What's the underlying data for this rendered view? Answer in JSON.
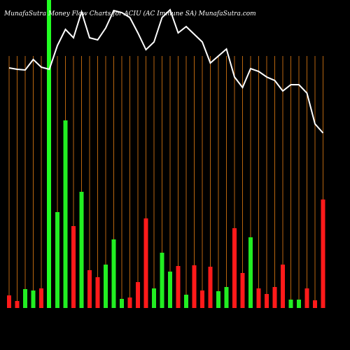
{
  "chart_data": {
    "type": "bar-line",
    "title": "MunafaSutra Money Flow Charts for ACIU (AC Immune SA) MunafaSutra.com",
    "values": [
      18,
      10,
      27,
      25,
      28,
      null,
      137,
      268,
      117,
      166,
      54,
      44,
      62,
      98,
      13,
      15,
      37,
      128,
      28,
      79,
      52,
      60,
      19,
      61,
      25,
      59,
      24,
      30,
      114,
      50,
      101,
      28,
      20,
      30,
      62,
      12,
      12,
      28,
      11,
      155
    ],
    "bar_colors": [
      "#ff1a1a",
      "#ff1a1a",
      "#22ee22",
      "#22ee22",
      "#ff1a1a",
      "#22ee22",
      "#22ee22",
      "#22ee22",
      "#ff1a1a",
      "#22ee22",
      "#ff1a1a",
      "#ff1a1a",
      "#22ee22",
      "#22ee22",
      "#22ee22",
      "#ff1a1a",
      "#ff1a1a",
      "#ff1a1a",
      "#22ee22",
      "#22ee22",
      "#22ee22",
      "#ff1a1a",
      "#22ee22",
      "#ff1a1a",
      "#ff1a1a",
      "#ff1a1a",
      "#22ee22",
      "#22ee22",
      "#ff1a1a",
      "#ff1a1a",
      "#22ee22",
      "#ff1a1a",
      "#ff1a1a",
      "#ff1a1a",
      "#ff1a1a",
      "#22ee22",
      "#22ee22",
      "#ff1a1a",
      "#ff1a1a",
      "#ff1a1a"
    ],
    "line": [
      403,
      401,
      400,
      415,
      404,
      401,
      435,
      458,
      446,
      483,
      446,
      443,
      460,
      485,
      482,
      475,
      453,
      429,
      440,
      475,
      486,
      453,
      462,
      451,
      440,
      410,
      420,
      430,
      390,
      375,
      402,
      398,
      390,
      385,
      370,
      379,
      379,
      367,
      323,
      310
    ],
    "line_color": "#ffffff",
    "grid_color": "#b8650f"
  }
}
